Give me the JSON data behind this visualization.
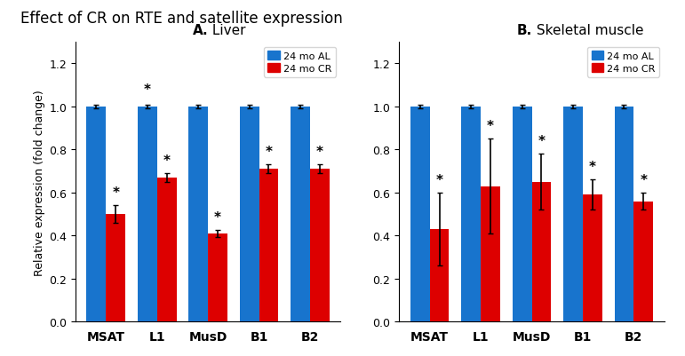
{
  "title": "Effect of CR on RTE and satellite expression",
  "panel_A_title": "A. Liver",
  "panel_B_title": "B. Skeletal muscle",
  "categories": [
    "MSAT",
    "L1",
    "MusD",
    "B1",
    "B2"
  ],
  "legend_labels": [
    "24 mo AL",
    "24 mo CR"
  ],
  "color_AL": "#1874CD",
  "color_CR": "#DD0000",
  "ylabel": "Relative expression (fold change)",
  "ylim": [
    0,
    1.3
  ],
  "yticks": [
    0.0,
    0.2,
    0.4,
    0.6,
    0.8,
    1.0,
    1.2
  ],
  "panel_A": {
    "AL_values": [
      1.0,
      1.0,
      1.0,
      1.0,
      1.0
    ],
    "CR_values": [
      0.5,
      0.67,
      0.41,
      0.71,
      0.71
    ],
    "AL_errors": [
      0.01,
      0.01,
      0.01,
      0.01,
      0.01
    ],
    "CR_errors": [
      0.04,
      0.02,
      0.015,
      0.02,
      0.02
    ],
    "star_AL": [
      false,
      true,
      false,
      false,
      false
    ],
    "star_CR": [
      true,
      true,
      true,
      true,
      true
    ]
  },
  "panel_B": {
    "AL_values": [
      1.0,
      1.0,
      1.0,
      1.0,
      1.0
    ],
    "CR_values": [
      0.43,
      0.63,
      0.65,
      0.59,
      0.56
    ],
    "AL_errors": [
      0.01,
      0.01,
      0.01,
      0.01,
      0.01
    ],
    "CR_errors": [
      0.17,
      0.22,
      0.13,
      0.07,
      0.04
    ],
    "star_AL": [
      false,
      false,
      false,
      false,
      false
    ],
    "star_CR": [
      true,
      true,
      true,
      true,
      true
    ]
  }
}
